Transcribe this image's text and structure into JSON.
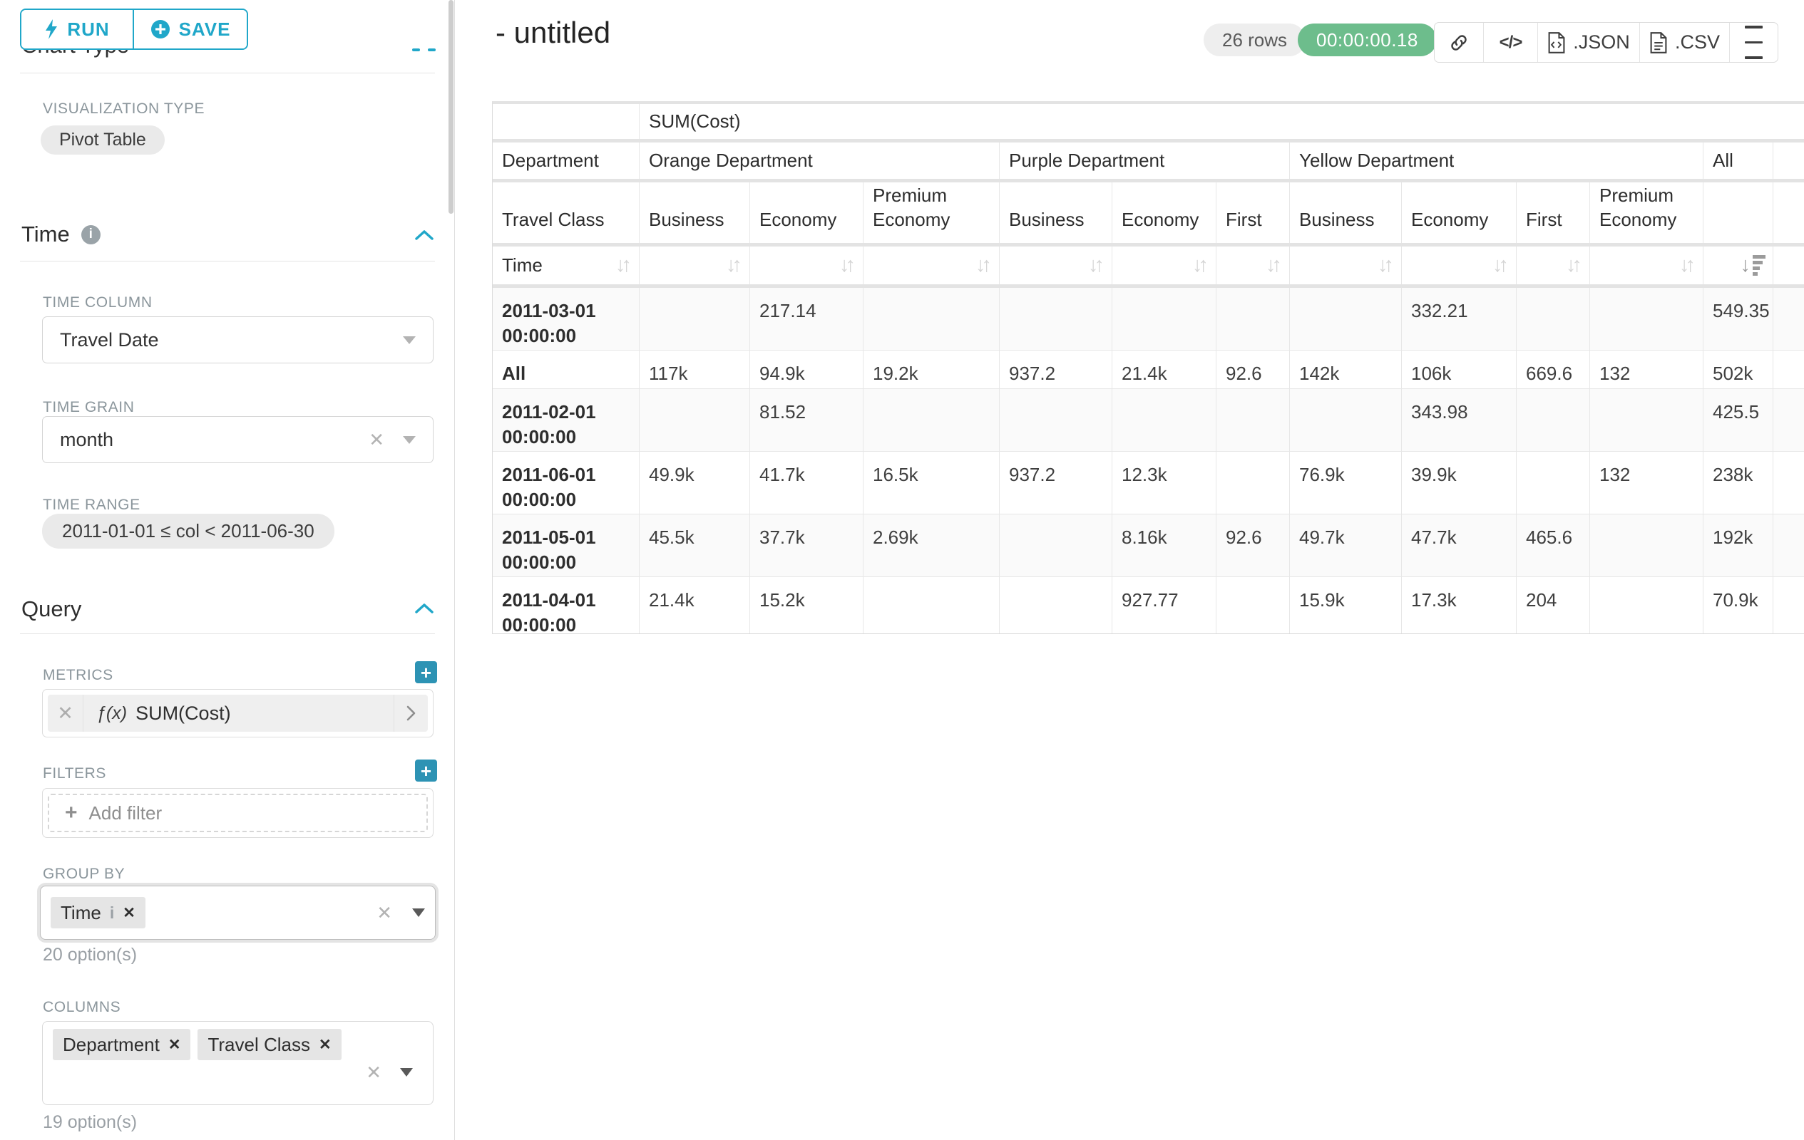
{
  "colors": {
    "accent": "#20a7c9",
    "success": "#6dbd8c"
  },
  "sidebar": {
    "run_label": "RUN",
    "save_label": "SAVE",
    "chart_type_title": "Chart Type",
    "viz_type_label": "VISUALIZATION TYPE",
    "viz_type_value": "Pivot Table",
    "time": {
      "title": "Time",
      "time_column_label": "TIME COLUMN",
      "time_column_value": "Travel Date",
      "time_grain_label": "TIME GRAIN",
      "time_grain_value": "month",
      "time_range_label": "TIME RANGE",
      "time_range_value": "2011-01-01 ≤ col < 2011-06-30"
    },
    "query": {
      "title": "Query",
      "metrics_label": "METRICS",
      "metric_fn_prefix": "ƒ(x)",
      "metric_value": "SUM(Cost)",
      "filters_label": "FILTERS",
      "add_filter_label": "Add filter",
      "group_by_label": "GROUP BY",
      "group_by_tags": [
        {
          "label": "Time"
        }
      ],
      "group_by_hint": "20 option(s)",
      "columns_label": "COLUMNS",
      "columns_tags": [
        {
          "label": "Department"
        },
        {
          "label": "Travel Class"
        }
      ],
      "columns_hint": "19 option(s)"
    }
  },
  "header": {
    "title": "- untitled",
    "rows_badge": "26 rows",
    "timer": "00:00:00.18",
    "json_label": ".JSON",
    "csv_label": ".CSV"
  },
  "pivot": {
    "metric_header": "SUM(Cost)",
    "col_dim_1": "Department",
    "col_dim_2": "Travel Class",
    "row_dim": "Time",
    "groups": [
      {
        "label": "Orange Department",
        "cols": 3
      },
      {
        "label": "Purple Department",
        "cols": 3
      },
      {
        "label": "Yellow Department",
        "cols": 4
      },
      {
        "label": "All",
        "cols": 1
      }
    ],
    "sub_columns": [
      "Business",
      "Economy",
      "Premium Economy",
      "Business",
      "Economy",
      "First",
      "Business",
      "Economy",
      "First",
      "Premium Economy",
      ""
    ],
    "rows": [
      {
        "label": "2011-03-01 00:00:00",
        "values": [
          "",
          "217.14",
          "",
          "",
          "",
          "",
          "",
          "332.21",
          "",
          "",
          "549.35"
        ]
      },
      {
        "label": "All",
        "values": [
          "117k",
          "94.9k",
          "19.2k",
          "937.2",
          "21.4k",
          "92.6",
          "142k",
          "106k",
          "669.6",
          "132",
          "502k"
        ]
      },
      {
        "label": "2011-02-01 00:00:00",
        "values": [
          "",
          "81.52",
          "",
          "",
          "",
          "",
          "",
          "343.98",
          "",
          "",
          "425.5"
        ]
      },
      {
        "label": "2011-06-01 00:00:00",
        "values": [
          "49.9k",
          "41.7k",
          "16.5k",
          "937.2",
          "12.3k",
          "",
          "76.9k",
          "39.9k",
          "",
          "132",
          "238k"
        ]
      },
      {
        "label": "2011-05-01 00:00:00",
        "values": [
          "45.5k",
          "37.7k",
          "2.69k",
          "",
          "8.16k",
          "92.6",
          "49.7k",
          "47.7k",
          "465.6",
          "",
          "192k"
        ]
      },
      {
        "label": "2011-04-01 00:00:00",
        "values": [
          "21.4k",
          "15.2k",
          "",
          "",
          "927.77",
          "",
          "15.9k",
          "17.3k",
          "204",
          "",
          "70.9k"
        ]
      }
    ]
  }
}
